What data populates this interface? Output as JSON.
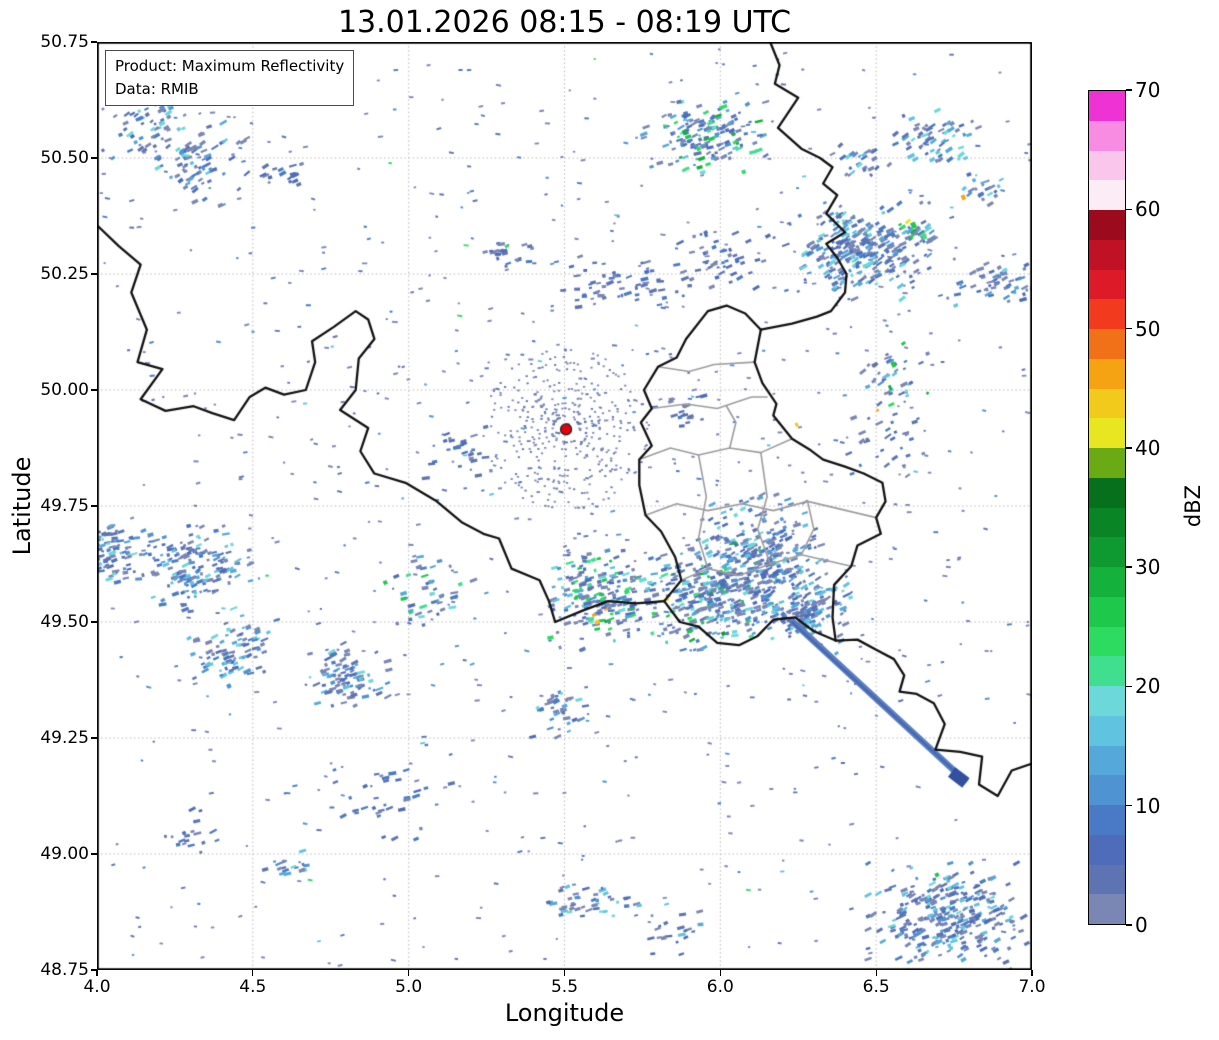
{
  "chart_data": {
    "type": "heatmap",
    "title": "13.01.2026 08:15 - 08:19 UTC",
    "xlabel": "Longitude",
    "ylabel": "Latitude",
    "xlim": [
      4.0,
      7.0
    ],
    "ylim": [
      48.75,
      50.75
    ],
    "grid": true,
    "annotation": {
      "line1": "Product: Maximum Reflectivity",
      "line2": "Data: RMIB"
    },
    "xticks": [
      {
        "v": 4.0,
        "label": "4.0"
      },
      {
        "v": 4.5,
        "label": "4.5"
      },
      {
        "v": 5.0,
        "label": "5.0"
      },
      {
        "v": 5.5,
        "label": "5.5"
      },
      {
        "v": 6.0,
        "label": "6.0"
      },
      {
        "v": 6.5,
        "label": "6.5"
      },
      {
        "v": 7.0,
        "label": "7.0"
      }
    ],
    "yticks": [
      {
        "v": 48.75,
        "label": "48.75"
      },
      {
        "v": 49.0,
        "label": "49.00"
      },
      {
        "v": 49.25,
        "label": "49.25"
      },
      {
        "v": 49.5,
        "label": "49.50"
      },
      {
        "v": 49.75,
        "label": "49.75"
      },
      {
        "v": 50.0,
        "label": "50.00"
      },
      {
        "v": 50.25,
        "label": "50.25"
      },
      {
        "v": 50.5,
        "label": "50.50"
      },
      {
        "v": 50.75,
        "label": "50.75"
      }
    ],
    "colorbar": {
      "label": "dBZ",
      "min": 0,
      "max": 70,
      "ticks": [
        {
          "v": 0,
          "label": "0"
        },
        {
          "v": 10,
          "label": "10"
        },
        {
          "v": 20,
          "label": "20"
        },
        {
          "v": 30,
          "label": "30"
        },
        {
          "v": 40,
          "label": "40"
        },
        {
          "v": 50,
          "label": "50"
        },
        {
          "v": 60,
          "label": "60"
        },
        {
          "v": 70,
          "label": "70"
        }
      ],
      "colors_bottom_to_top": [
        "#7a86b4",
        "#5e73b2",
        "#4e6cba",
        "#4a7ac6",
        "#4f93d2",
        "#55a9da",
        "#60c3e0",
        "#6cd8da",
        "#3fdf8f",
        "#2cdb5f",
        "#1dc84b",
        "#14b13c",
        "#0e9a30",
        "#0a8526",
        "#07701d",
        "#6aaa15",
        "#e8e621",
        "#f2ca1c",
        "#f5a313",
        "#f07118",
        "#f23a1e",
        "#dc1a28",
        "#c01224",
        "#9c0a1d",
        "#fcecf6",
        "#fac6ec",
        "#f78ce2",
        "#ef32d4"
      ]
    },
    "radar_site": {
      "lon": 5.505,
      "lat": 49.915,
      "color": "#e8000b"
    },
    "echo_palette": [
      "#7a86b4",
      "#5e73b2",
      "#4e6cba",
      "#4a7ac6",
      "#4f93d2",
      "#55a9da",
      "#60c3e0",
      "#6cd8da",
      "#3fdf8f",
      "#2cdb5f",
      "#1dc84b",
      "#14b13c",
      "#e8e621",
      "#f5a313"
    ],
    "noise": {
      "count": 900,
      "seed": 20260113
    },
    "rings": {
      "dots": 430
    },
    "clusters": [
      {
        "lon": 4.18,
        "lat": 50.565,
        "slon": 0.07,
        "slat": 0.045,
        "n": 70,
        "rot": -30,
        "heat": 1
      },
      {
        "lon": 4.32,
        "lat": 50.49,
        "slon": 0.07,
        "slat": 0.04,
        "n": 70,
        "rot": -30,
        "heat": 1
      },
      {
        "lon": 4.58,
        "lat": 50.455,
        "slon": 0.04,
        "slat": 0.015,
        "n": 18,
        "rot": -25,
        "heat": 0
      },
      {
        "lon": 4.06,
        "lat": 49.655,
        "slon": 0.055,
        "slat": 0.03,
        "n": 90,
        "rot": -15,
        "heat": 1
      },
      {
        "lon": 4.32,
        "lat": 49.615,
        "slon": 0.075,
        "slat": 0.04,
        "n": 150,
        "rot": -20,
        "heat": 1
      },
      {
        "lon": 4.41,
        "lat": 49.425,
        "slon": 0.055,
        "slat": 0.028,
        "n": 60,
        "rot": -22,
        "heat": 1
      },
      {
        "lon": 4.81,
        "lat": 49.385,
        "slon": 0.055,
        "slat": 0.03,
        "n": 90,
        "rot": -22,
        "heat": 1
      },
      {
        "lon": 5.07,
        "lat": 49.56,
        "slon": 0.06,
        "slat": 0.035,
        "n": 45,
        "rot": -15,
        "heat": 2
      },
      {
        "lon": 5.62,
        "lat": 49.555,
        "slon": 0.075,
        "slat": 0.05,
        "n": 190,
        "rot": -15,
        "heat": 2
      },
      {
        "lon": 5.95,
        "lat": 49.555,
        "slon": 0.1,
        "slat": 0.05,
        "n": 260,
        "rot": -18,
        "heat": 2
      },
      {
        "lon": 6.14,
        "lat": 49.625,
        "slon": 0.115,
        "slat": 0.065,
        "n": 330,
        "rot": -25,
        "heat": 1
      },
      {
        "lon": 6.28,
        "lat": 49.52,
        "slon": 0.06,
        "slat": 0.038,
        "n": 130,
        "rot": -30,
        "heat": 1
      },
      {
        "lon": 5.95,
        "lat": 50.545,
        "slon": 0.085,
        "slat": 0.033,
        "n": 150,
        "rot": -22,
        "heat": 2
      },
      {
        "lon": 6.44,
        "lat": 50.3,
        "slon": 0.1,
        "slat": 0.045,
        "n": 280,
        "rot": -30,
        "heat": 1
      },
      {
        "lon": 6.64,
        "lat": 50.345,
        "slon": 0.03,
        "slat": 0.018,
        "n": 25,
        "rot": -38,
        "heat": 2
      },
      {
        "lon": 6.88,
        "lat": 50.23,
        "slon": 0.07,
        "slat": 0.028,
        "n": 55,
        "rot": -22,
        "heat": 1
      },
      {
        "lon": 5.7,
        "lat": 50.225,
        "slon": 0.095,
        "slat": 0.028,
        "n": 55,
        "rot": -12,
        "heat": 0
      },
      {
        "lon": 5.31,
        "lat": 50.3,
        "slon": 0.05,
        "slat": 0.018,
        "n": 22,
        "rot": -12,
        "heat": 0
      },
      {
        "lon": 6.0,
        "lat": 50.285,
        "slon": 0.075,
        "slat": 0.032,
        "n": 50,
        "rot": -20,
        "heat": 0
      },
      {
        "lon": 6.45,
        "lat": 50.5,
        "slon": 0.04,
        "slat": 0.016,
        "n": 26,
        "rot": -35,
        "heat": 1
      },
      {
        "lon": 6.7,
        "lat": 50.545,
        "slon": 0.06,
        "slat": 0.025,
        "n": 60,
        "rot": -30,
        "heat": 1
      },
      {
        "lon": 6.55,
        "lat": 50.03,
        "slon": 0.05,
        "slat": 0.035,
        "n": 35,
        "rot": -30,
        "heat": 2
      },
      {
        "lon": 6.55,
        "lat": 49.9,
        "slon": 0.06,
        "slat": 0.04,
        "n": 30,
        "rot": -28,
        "heat": 0
      },
      {
        "lon": 6.85,
        "lat": 50.44,
        "slon": 0.035,
        "slat": 0.02,
        "n": 20,
        "rot": -30,
        "heat": 1
      },
      {
        "lon": 6.75,
        "lat": 48.865,
        "slon": 0.12,
        "slat": 0.05,
        "n": 300,
        "rot": -25,
        "heat": 1
      },
      {
        "lon": 5.58,
        "lat": 48.9,
        "slon": 0.075,
        "slat": 0.026,
        "n": 45,
        "rot": -15,
        "heat": 1
      },
      {
        "lon": 5.85,
        "lat": 48.83,
        "slon": 0.05,
        "slat": 0.02,
        "n": 20,
        "rot": -15,
        "heat": 1
      },
      {
        "lon": 4.95,
        "lat": 49.12,
        "slon": 0.09,
        "slat": 0.05,
        "n": 35,
        "rot": -18,
        "heat": 0
      },
      {
        "lon": 4.3,
        "lat": 49.05,
        "slon": 0.05,
        "slat": 0.03,
        "n": 18,
        "rot": -18,
        "heat": 0
      },
      {
        "lon": 5.48,
        "lat": 49.31,
        "slon": 0.05,
        "slat": 0.025,
        "n": 35,
        "rot": -20,
        "heat": 1
      },
      {
        "lon": 4.62,
        "lat": 48.975,
        "slon": 0.035,
        "slat": 0.015,
        "n": 16,
        "rot": -15,
        "heat": 1
      },
      {
        "lon": 4.5,
        "lat": 49.47,
        "slon": 0.04,
        "slat": 0.02,
        "n": 25,
        "rot": -20,
        "heat": 1
      },
      {
        "lon": 5.17,
        "lat": 49.865,
        "slon": 0.05,
        "slat": 0.025,
        "n": 25,
        "rot": -12,
        "heat": 0
      },
      {
        "lon": 5.88,
        "lat": 49.96,
        "slon": 0.04,
        "slat": 0.02,
        "n": 18,
        "rot": -15,
        "heat": 0
      }
    ],
    "specks": [
      [
        6.78,
        50.415,
        4,
        5,
        "#f5a313"
      ],
      [
        5.605,
        49.5,
        5,
        4,
        "#f2ca1c"
      ],
      [
        5.595,
        49.515,
        4,
        3,
        "#f5a313"
      ],
      [
        6.62,
        50.355,
        5,
        6,
        "#1dc84b"
      ],
      [
        6.655,
        50.33,
        4,
        5,
        "#3fdf8f"
      ],
      [
        5.885,
        50.555,
        4,
        5,
        "#14b13c"
      ],
      [
        5.93,
        50.52,
        4,
        4,
        "#2cdb5f"
      ],
      [
        6.555,
        50.055,
        4,
        6,
        "#1dc84b"
      ],
      [
        6.545,
        50.005,
        3,
        5,
        "#14b13c"
      ],
      [
        5.315,
        50.31,
        4,
        3,
        "#2cdb5f"
      ],
      [
        6.01,
        49.475,
        4,
        4,
        "#0e9a30"
      ],
      [
        5.7,
        49.565,
        5,
        4,
        "#2cdb5f"
      ],
      [
        6.695,
        48.955,
        4,
        4,
        "#1dc84b"
      ],
      [
        4.925,
        49.585,
        4,
        4,
        "#1dc84b"
      ],
      [
        6.245,
        49.925,
        3,
        4,
        "#f2ca1c"
      ],
      [
        6.075,
        50.47,
        4,
        4,
        "#2cdb5f"
      ]
    ],
    "streak": {
      "from": [
        6.225,
        49.505
      ],
      "to": [
        6.79,
        49.155
      ],
      "color": "#5b7ec2",
      "core_color": "#4669b2",
      "end_blob": [
        6.765,
        49.165
      ],
      "end_color": "#31519f"
    },
    "borders_black": [
      [
        [
          4.0,
          50.355
        ],
        [
          4.07,
          50.31
        ],
        [
          4.14,
          50.27
        ],
        [
          4.11,
          50.21
        ],
        [
          4.16,
          50.13
        ],
        [
          4.13,
          50.06
        ],
        [
          4.21,
          50.045
        ],
        [
          4.14,
          49.98
        ],
        [
          4.22,
          49.955
        ],
        [
          4.31,
          49.965
        ],
        [
          4.37,
          49.95
        ],
        [
          4.44,
          49.935
        ],
        [
          4.49,
          49.985
        ],
        [
          4.54,
          50.005
        ],
        [
          4.6,
          49.99
        ],
        [
          4.67,
          50.0
        ],
        [
          4.7,
          50.06
        ],
        [
          4.69,
          50.105
        ],
        [
          4.76,
          50.136
        ],
        [
          4.83,
          50.17
        ],
        [
          4.87,
          50.152
        ],
        [
          4.89,
          50.11
        ],
        [
          4.84,
          50.068
        ],
        [
          4.83,
          50.0
        ],
        [
          4.78,
          49.957
        ],
        [
          4.87,
          49.918
        ],
        [
          4.845,
          49.868
        ],
        [
          4.89,
          49.82
        ],
        [
          4.99,
          49.8
        ],
        [
          5.09,
          49.76
        ],
        [
          5.17,
          49.715
        ],
        [
          5.24,
          49.69
        ],
        [
          5.29,
          49.68
        ],
        [
          5.33,
          49.615
        ],
        [
          5.42,
          49.59
        ],
        [
          5.45,
          49.545
        ],
        [
          5.47,
          49.5
        ],
        [
          5.56,
          49.525
        ],
        [
          5.64,
          49.545
        ],
        [
          5.73,
          49.54
        ],
        [
          5.82,
          49.545
        ],
        [
          5.87,
          49.5
        ],
        [
          5.93,
          49.49
        ],
        [
          5.99,
          49.455
        ],
        [
          6.06,
          49.45
        ],
        [
          6.12,
          49.47
        ],
        [
          6.17,
          49.505
        ],
        [
          6.24,
          49.51
        ],
        [
          6.3,
          49.48
        ],
        [
          6.37,
          49.46
        ]
      ],
      [
        [
          5.82,
          49.545
        ],
        [
          5.875,
          49.59
        ],
        [
          5.855,
          49.64
        ],
        [
          5.81,
          49.695
        ],
        [
          5.76,
          49.73
        ],
        [
          5.74,
          49.795
        ],
        [
          5.74,
          49.85
        ],
        [
          5.78,
          49.88
        ],
        [
          5.745,
          49.93
        ],
        [
          5.78,
          49.96
        ],
        [
          5.755,
          50.0
        ],
        [
          5.8,
          50.05
        ],
        [
          5.86,
          50.07
        ],
        [
          5.89,
          50.11
        ],
        [
          5.96,
          50.17
        ],
        [
          6.02,
          50.182
        ],
        [
          6.08,
          50.165
        ],
        [
          6.13,
          50.13
        ]
      ],
      [
        [
          6.13,
          50.13
        ],
        [
          6.11,
          50.06
        ],
        [
          6.135,
          50.015
        ],
        [
          6.18,
          49.97
        ],
        [
          6.17,
          49.945
        ],
        [
          6.23,
          49.895
        ],
        [
          6.29,
          49.87
        ],
        [
          6.33,
          49.85
        ],
        [
          6.4,
          49.835
        ],
        [
          6.46,
          49.82
        ],
        [
          6.52,
          49.8
        ],
        [
          6.53,
          49.76
        ],
        [
          6.5,
          49.725
        ],
        [
          6.515,
          49.69
        ],
        [
          6.44,
          49.665
        ],
        [
          6.42,
          49.62
        ],
        [
          6.365,
          49.58
        ],
        [
          6.36,
          49.51
        ],
        [
          6.37,
          49.46
        ]
      ],
      [
        [
          6.16,
          50.75
        ],
        [
          6.19,
          50.7
        ],
        [
          6.175,
          50.66
        ],
        [
          6.25,
          50.63
        ],
        [
          6.185,
          50.565
        ],
        [
          6.26,
          50.52
        ],
        [
          6.32,
          50.5
        ],
        [
          6.36,
          50.48
        ],
        [
          6.33,
          50.445
        ],
        [
          6.375,
          50.42
        ],
        [
          6.34,
          50.38
        ],
        [
          6.4,
          50.34
        ],
        [
          6.34,
          50.315
        ],
        [
          6.375,
          50.285
        ],
        [
          6.405,
          50.25
        ],
        [
          6.4,
          50.21
        ],
        [
          6.355,
          50.17
        ],
        [
          6.31,
          50.158
        ],
        [
          6.23,
          50.143
        ],
        [
          6.13,
          50.13
        ]
      ],
      [
        [
          6.37,
          49.46
        ],
        [
          6.44,
          49.462
        ],
        [
          6.5,
          49.44
        ],
        [
          6.557,
          49.42
        ],
        [
          6.59,
          49.385
        ],
        [
          6.575,
          49.35
        ],
        [
          6.63,
          49.345
        ],
        [
          6.685,
          49.325
        ],
        [
          6.72,
          49.28
        ],
        [
          6.69,
          49.225
        ],
        [
          6.77,
          49.22
        ],
        [
          6.84,
          49.21
        ],
        [
          6.83,
          49.15
        ],
        [
          6.89,
          49.125
        ],
        [
          6.935,
          49.18
        ],
        [
          7.0,
          49.195
        ]
      ]
    ],
    "borders_gray": [
      [
        [
          5.78,
          49.96
        ],
        [
          5.89,
          49.97
        ],
        [
          5.99,
          49.96
        ],
        [
          6.1,
          49.985
        ],
        [
          6.15,
          49.985
        ]
      ],
      [
        [
          5.8,
          50.05
        ],
        [
          5.9,
          50.04
        ],
        [
          5.98,
          50.055
        ],
        [
          6.11,
          50.06
        ]
      ],
      [
        [
          5.74,
          49.85
        ],
        [
          5.84,
          49.875
        ],
        [
          5.93,
          49.86
        ],
        [
          6.03,
          49.875
        ],
        [
          6.13,
          49.865
        ],
        [
          6.23,
          49.895
        ]
      ],
      [
        [
          5.76,
          49.73
        ],
        [
          5.86,
          49.755
        ],
        [
          5.96,
          49.74
        ],
        [
          6.07,
          49.755
        ],
        [
          6.17,
          49.74
        ],
        [
          6.28,
          49.76
        ],
        [
          6.5,
          49.725
        ]
      ],
      [
        [
          5.875,
          49.59
        ],
        [
          5.96,
          49.615
        ],
        [
          6.06,
          49.6
        ],
        [
          6.16,
          49.625
        ],
        [
          6.26,
          49.645
        ],
        [
          6.42,
          49.62
        ]
      ],
      [
        [
          5.93,
          49.86
        ],
        [
          5.955,
          49.77
        ],
        [
          5.93,
          49.68
        ],
        [
          5.96,
          49.615
        ]
      ],
      [
        [
          6.13,
          49.865
        ],
        [
          6.15,
          49.77
        ],
        [
          6.12,
          49.7
        ],
        [
          6.16,
          49.625
        ]
      ],
      [
        [
          6.03,
          49.875
        ],
        [
          6.05,
          49.93
        ],
        [
          6.02,
          49.965
        ]
      ],
      [
        [
          6.28,
          49.76
        ],
        [
          6.3,
          49.7
        ],
        [
          6.26,
          49.645
        ]
      ]
    ]
  }
}
